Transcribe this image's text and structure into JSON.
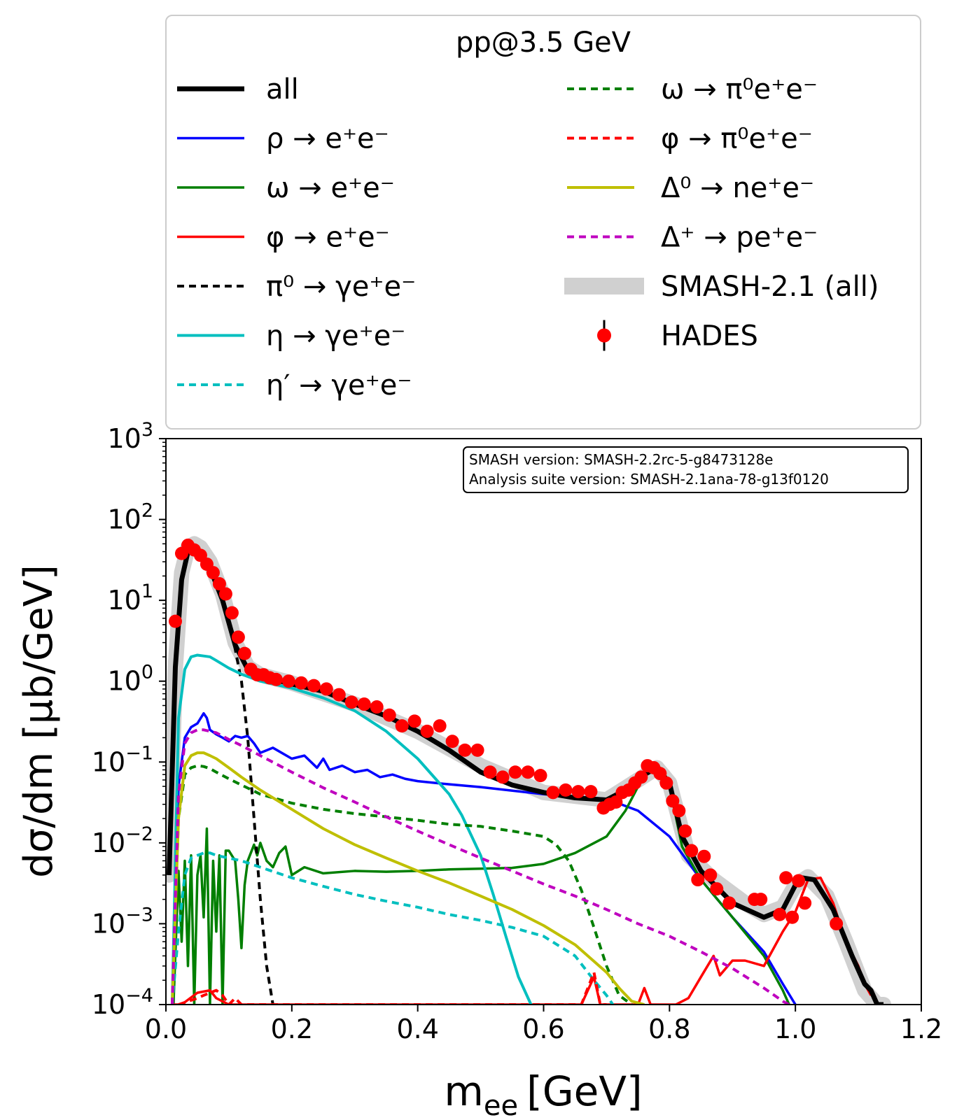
{
  "chart_data": {
    "type": "line",
    "legend_title": "pp@3.5 GeV",
    "legend_placement": "top, above axes (two columns)",
    "version_box": [
      "SMASH version: SMASH-2.2rc-5-g8473128e",
      "Analysis suite version: SMASH-2.1ana-78-g13f0120"
    ],
    "xlabel_main": "m",
    "xlabel_sub": "ee",
    "xlabel_unit": "[GeV]",
    "ylabel": "dσ/dm [μb/GeV]",
    "xlim": [
      0.0,
      1.2
    ],
    "ylim": [
      0.0001,
      1000
    ],
    "yscale": "log",
    "grid": false,
    "x_ticks": [
      "0.0",
      "0.2",
      "0.4",
      "0.6",
      "0.8",
      "1.0",
      "1.2"
    ],
    "y_ticks": [
      {
        "base": "10",
        "exp": "3",
        "value": 1000
      },
      {
        "base": "10",
        "exp": "2",
        "value": 100
      },
      {
        "base": "10",
        "exp": "1",
        "value": 10
      },
      {
        "base": "10",
        "exp": "0",
        "value": 1
      },
      {
        "base": "10",
        "exp": "−1",
        "value": 0.1
      },
      {
        "base": "10",
        "exp": "−2",
        "value": 0.01
      },
      {
        "base": "10",
        "exp": "−3",
        "value": 0.001
      },
      {
        "base": "10",
        "exp": "−4",
        "value": 0.0001
      }
    ],
    "band": {
      "name": "SMASH-2.1 (all)",
      "color": "#d0d0d0",
      "x": [
        0.005,
        0.015,
        0.025,
        0.035,
        0.045,
        0.055,
        0.07,
        0.09,
        0.11,
        0.13,
        0.15,
        0.2,
        0.3,
        0.4,
        0.5,
        0.6,
        0.7,
        0.75,
        0.78,
        0.8,
        0.83,
        0.87,
        0.92,
        0.95,
        0.98,
        1.0,
        1.02,
        1.05,
        1.08,
        1.11,
        1.13,
        1.14
      ],
      "y": [
        0.004,
        1.5,
        22,
        45,
        50,
        45,
        30,
        12,
        3,
        1.5,
        1.2,
        0.95,
        0.52,
        0.24,
        0.09,
        0.042,
        0.034,
        0.06,
        0.085,
        0.055,
        0.007,
        0.0035,
        0.0018,
        0.0013,
        0.0016,
        0.003,
        0.0038,
        0.0022,
        0.0006,
        0.00015,
        0.0001,
        0.0001
      ]
    },
    "series": [
      {
        "name": "all",
        "color": "#000000",
        "dash": "solid",
        "width": 7,
        "x": [
          0.005,
          0.015,
          0.025,
          0.035,
          0.045,
          0.055,
          0.07,
          0.09,
          0.11,
          0.13,
          0.15,
          0.2,
          0.25,
          0.3,
          0.35,
          0.4,
          0.45,
          0.5,
          0.55,
          0.6,
          0.65,
          0.7,
          0.73,
          0.76,
          0.78,
          0.8,
          0.82,
          0.85,
          0.9,
          0.95,
          0.98,
          1.0,
          1.01,
          1.03,
          1.06,
          1.09,
          1.11,
          1.12,
          1.13,
          1.14
        ],
        "y": [
          0.004,
          1.5,
          18,
          40,
          45,
          40,
          25,
          10,
          2.8,
          1.4,
          1.15,
          0.92,
          0.75,
          0.52,
          0.37,
          0.24,
          0.14,
          0.075,
          0.052,
          0.042,
          0.036,
          0.034,
          0.045,
          0.07,
          0.085,
          0.055,
          0.012,
          0.0045,
          0.0018,
          0.0012,
          0.0015,
          0.003,
          0.0037,
          0.0035,
          0.0015,
          0.0004,
          0.00018,
          0.00015,
          0.0001,
          0.0001
        ]
      },
      {
        "name": "ρ → e⁺e⁻",
        "color": "#0000ff",
        "dash": "solid",
        "width": 3.5,
        "x": [
          0.012,
          0.02,
          0.03,
          0.04,
          0.05,
          0.06,
          0.065,
          0.07,
          0.08,
          0.09,
          0.1,
          0.11,
          0.12,
          0.13,
          0.14,
          0.15,
          0.17,
          0.2,
          0.22,
          0.24,
          0.25,
          0.26,
          0.28,
          0.3,
          0.32,
          0.34,
          0.36,
          0.38,
          0.4,
          0.45,
          0.5,
          0.6,
          0.7,
          0.75,
          0.8,
          0.85,
          0.9,
          0.95,
          0.98,
          1.0
        ],
        "y": [
          0.0001,
          0.05,
          0.2,
          0.27,
          0.3,
          0.4,
          0.35,
          0.25,
          0.22,
          0.2,
          0.18,
          0.21,
          0.2,
          0.21,
          0.17,
          0.13,
          0.15,
          0.11,
          0.12,
          0.085,
          0.11,
          0.08,
          0.09,
          0.075,
          0.08,
          0.065,
          0.07,
          0.062,
          0.058,
          0.053,
          0.049,
          0.04,
          0.035,
          0.025,
          0.012,
          0.0035,
          0.0012,
          0.00045,
          0.00018,
          0.0001
        ]
      },
      {
        "name": "ω → e⁺e⁻",
        "color": "#007f00",
        "dash": "solid",
        "width": 3.5,
        "x": [
          0.012,
          0.02,
          0.025,
          0.03,
          0.035,
          0.04,
          0.045,
          0.05,
          0.055,
          0.06,
          0.065,
          0.07,
          0.075,
          0.08,
          0.085,
          0.09,
          0.095,
          0.1,
          0.11,
          0.115,
          0.12,
          0.125,
          0.13,
          0.14,
          0.145,
          0.15,
          0.16,
          0.17,
          0.18,
          0.19,
          0.2,
          0.22,
          0.25,
          0.3,
          0.35,
          0.4,
          0.45,
          0.5,
          0.55,
          0.6,
          0.65,
          0.7,
          0.73,
          0.76,
          0.78,
          0.79,
          0.8,
          0.82,
          0.85,
          0.9,
          0.95,
          0.98,
          0.99
        ],
        "y": [
          0.0001,
          0.0045,
          0.0006,
          0.006,
          0.0003,
          0.007,
          0.0001,
          0.004,
          0.007,
          0.0012,
          0.015,
          0.0001,
          0.006,
          0.0008,
          0.007,
          0.0001,
          0.008,
          0.008,
          0.006,
          0.002,
          0.0005,
          0.003,
          0.006,
          0.0095,
          0.007,
          0.01,
          0.006,
          0.005,
          0.0075,
          0.009,
          0.004,
          0.005,
          0.0042,
          0.0045,
          0.0044,
          0.0045,
          0.0047,
          0.0048,
          0.0049,
          0.0055,
          0.0075,
          0.012,
          0.025,
          0.07,
          0.09,
          0.08,
          0.05,
          0.009,
          0.0035,
          0.0012,
          0.0004,
          0.00015,
          0.0001
        ]
      },
      {
        "name": "φ → e⁺e⁻",
        "color": "#ff0000",
        "dash": "solid",
        "width": 3.5,
        "x": [
          0.012,
          0.025,
          0.05,
          0.07,
          0.08,
          0.1,
          0.12,
          0.66,
          0.68,
          0.69,
          0.7,
          0.75,
          0.76,
          0.77,
          0.79,
          0.81,
          0.83,
          0.85,
          0.87,
          0.88,
          0.9,
          0.92,
          0.95,
          0.98,
          1.0,
          1.02,
          1.04,
          1.06,
          1.08,
          1.1,
          1.11,
          1.12
        ],
        "y": [
          0.0001,
          0.0001,
          0.00014,
          0.00015,
          0.00012,
          0.0001,
          0.0001,
          0.0001,
          0.00022,
          0.0001,
          0.0001,
          0.0001,
          0.00016,
          0.0001,
          0.0001,
          0.0001,
          0.00012,
          0.00022,
          0.0004,
          0.00023,
          0.00035,
          0.00035,
          0.0003,
          0.0008,
          0.0014,
          0.0035,
          0.0037,
          0.0018,
          0.0006,
          0.0003,
          0.00018,
          0.00013
        ]
      },
      {
        "name": "π⁰ → γe⁺e⁻",
        "color": "#000000",
        "dash": "10,7",
        "width": 4,
        "x": [
          0.005,
          0.015,
          0.025,
          0.035,
          0.045,
          0.055,
          0.07,
          0.09,
          0.11,
          0.12,
          0.13,
          0.14,
          0.15,
          0.16,
          0.17
        ],
        "y": [
          0.004,
          1.5,
          18,
          40,
          45,
          40,
          25,
          10,
          2.5,
          1.0,
          0.2,
          0.02,
          0.002,
          0.0003,
          0.0001
        ]
      },
      {
        "name": "η → γe⁺e⁻",
        "color": "#00bfbf",
        "dash": "solid",
        "width": 4,
        "x": [
          0.01,
          0.02,
          0.03,
          0.04,
          0.05,
          0.06,
          0.07,
          0.08,
          0.1,
          0.12,
          0.15,
          0.2,
          0.25,
          0.3,
          0.35,
          0.4,
          0.45,
          0.47,
          0.5,
          0.52,
          0.54,
          0.56,
          0.58
        ],
        "y": [
          0.0001,
          0.35,
          1.4,
          2.0,
          2.1,
          2.05,
          2.0,
          1.8,
          1.45,
          1.22,
          1.0,
          0.82,
          0.62,
          0.43,
          0.24,
          0.11,
          0.04,
          0.022,
          0.007,
          0.0023,
          0.0007,
          0.00022,
          0.0001
        ]
      },
      {
        "name": "η′ → γe⁺e⁻",
        "color": "#00bfbf",
        "dash": "10,7",
        "width": 4,
        "x": [
          0.01,
          0.02,
          0.03,
          0.04,
          0.05,
          0.06,
          0.07,
          0.08,
          0.1,
          0.12,
          0.15,
          0.2,
          0.25,
          0.3,
          0.35,
          0.4,
          0.45,
          0.5,
          0.55,
          0.6,
          0.65,
          0.68,
          0.7,
          0.71
        ],
        "y": [
          0.0001,
          0.0008,
          0.004,
          0.0065,
          0.007,
          0.0075,
          0.0075,
          0.007,
          0.0065,
          0.006,
          0.005,
          0.0037,
          0.0029,
          0.0023,
          0.0019,
          0.0016,
          0.0013,
          0.0011,
          0.0009,
          0.0007,
          0.0004,
          0.0002,
          0.00013,
          0.0001
        ]
      },
      {
        "name": "ω → π⁰e⁺e⁻",
        "color": "#007f00",
        "dash": "10,7",
        "width": 4,
        "x": [
          0.01,
          0.02,
          0.03,
          0.04,
          0.05,
          0.06,
          0.07,
          0.08,
          0.1,
          0.12,
          0.15,
          0.2,
          0.25,
          0.3,
          0.35,
          0.4,
          0.45,
          0.5,
          0.55,
          0.6,
          0.62,
          0.64,
          0.66,
          0.68,
          0.7,
          0.72,
          0.74
        ],
        "y": [
          0.0001,
          0.02,
          0.07,
          0.085,
          0.09,
          0.088,
          0.083,
          0.075,
          0.062,
          0.052,
          0.04,
          0.031,
          0.026,
          0.023,
          0.021,
          0.019,
          0.017,
          0.016,
          0.014,
          0.012,
          0.0095,
          0.006,
          0.0026,
          0.0009,
          0.0003,
          0.00013,
          0.0001
        ]
      },
      {
        "name": "φ → π⁰e⁺e⁻",
        "color": "#ff0000",
        "dash": "10,7",
        "width": 4,
        "x": [
          0.02,
          0.05,
          0.06,
          0.07,
          0.08,
          0.09,
          0.1,
          0.11,
          0.12,
          0.66,
          0.68,
          0.69,
          0.7
        ],
        "y": [
          0.0001,
          0.00012,
          0.00013,
          0.00014,
          0.00015,
          0.00013,
          0.0001,
          0.00012,
          0.0001,
          0.0001,
          0.00025,
          0.0001,
          0.0001
        ]
      },
      {
        "name": "Δ⁰ → ne⁺e⁻",
        "color": "#bfbf00",
        "dash": "solid",
        "width": 4,
        "x": [
          0.01,
          0.02,
          0.03,
          0.04,
          0.05,
          0.06,
          0.07,
          0.08,
          0.1,
          0.12,
          0.15,
          0.2,
          0.25,
          0.3,
          0.35,
          0.4,
          0.45,
          0.5,
          0.55,
          0.6,
          0.65,
          0.7,
          0.72,
          0.74,
          0.76
        ],
        "y": [
          0.0001,
          0.02,
          0.09,
          0.12,
          0.13,
          0.13,
          0.12,
          0.11,
          0.085,
          0.065,
          0.045,
          0.026,
          0.015,
          0.0095,
          0.0065,
          0.0045,
          0.0032,
          0.0022,
          0.0015,
          0.00095,
          0.00055,
          0.00025,
          0.00016,
          0.00011,
          0.0001
        ]
      },
      {
        "name": "Δ⁺ → pe⁺e⁻",
        "color": "#bf00bf",
        "dash": "10,7",
        "width": 4,
        "x": [
          0.01,
          0.02,
          0.03,
          0.04,
          0.05,
          0.06,
          0.07,
          0.08,
          0.1,
          0.12,
          0.15,
          0.2,
          0.25,
          0.3,
          0.35,
          0.4,
          0.45,
          0.5,
          0.55,
          0.6,
          0.65,
          0.7,
          0.75,
          0.8,
          0.85,
          0.9,
          0.95,
          0.98,
          0.99
        ],
        "y": [
          0.0001,
          0.04,
          0.17,
          0.23,
          0.25,
          0.25,
          0.24,
          0.23,
          0.19,
          0.16,
          0.12,
          0.075,
          0.048,
          0.032,
          0.021,
          0.014,
          0.0095,
          0.0065,
          0.0045,
          0.0031,
          0.0022,
          0.0015,
          0.001,
          0.0007,
          0.00045,
          0.00028,
          0.00016,
          0.00011,
          0.0001
        ]
      }
    ],
    "data_points": {
      "name": "HADES",
      "color": "#ff0000",
      "x": [
        0.015,
        0.025,
        0.035,
        0.045,
        0.055,
        0.065,
        0.075,
        0.085,
        0.095,
        0.105,
        0.115,
        0.125,
        0.135,
        0.145,
        0.155,
        0.165,
        0.175,
        0.195,
        0.215,
        0.235,
        0.255,
        0.275,
        0.295,
        0.315,
        0.335,
        0.355,
        0.375,
        0.395,
        0.415,
        0.435,
        0.455,
        0.475,
        0.495,
        0.515,
        0.535,
        0.555,
        0.575,
        0.595,
        0.615,
        0.635,
        0.655,
        0.675,
        0.695,
        0.705,
        0.715,
        0.725,
        0.735,
        0.745,
        0.755,
        0.765,
        0.775,
        0.785,
        0.795,
        0.805,
        0.815,
        0.825,
        0.835,
        0.845,
        0.855,
        0.865,
        0.875,
        0.895,
        0.935,
        0.945,
        0.975,
        0.985,
        0.995,
        1.005,
        1.015,
        1.065
      ],
      "y": [
        5.5,
        38,
        48,
        42,
        36,
        28,
        22,
        16,
        12,
        7,
        3.5,
        2.2,
        1.4,
        1.2,
        1.2,
        1.1,
        1.05,
        1.0,
        0.95,
        0.88,
        0.8,
        0.68,
        0.55,
        0.52,
        0.48,
        0.38,
        0.28,
        0.32,
        0.24,
        0.28,
        0.18,
        0.14,
        0.14,
        0.075,
        0.065,
        0.075,
        0.075,
        0.068,
        0.042,
        0.045,
        0.043,
        0.043,
        0.027,
        0.03,
        0.032,
        0.042,
        0.045,
        0.055,
        0.065,
        0.09,
        0.085,
        0.072,
        0.055,
        0.033,
        0.025,
        0.014,
        0.008,
        0.0035,
        0.0068,
        0.004,
        0.0027,
        0.0018,
        0.002,
        0.002,
        0.0013,
        0.0037,
        0.0012,
        0.0034,
        0.0018,
        0.001
      ],
      "err_lo": [
        5.5,
        38,
        48,
        42,
        36,
        28,
        22,
        16,
        12,
        7,
        3.5,
        2.2,
        1.4,
        1.2,
        1.2,
        1.1,
        1.05,
        1.0,
        0.95,
        0.88,
        0.8,
        0.68,
        0.55,
        0.52,
        0.48,
        0.38,
        0.28,
        0.32,
        0.24,
        0.28,
        0.18,
        0.14,
        0.14,
        0.075,
        0.065,
        0.075,
        0.075,
        0.068,
        0.042,
        0.045,
        0.043,
        0.043,
        0.027,
        0.03,
        0.032,
        0.042,
        0.045,
        0.055,
        0.065,
        0.09,
        0.085,
        0.072,
        0.055,
        0.033,
        0.016,
        0.005,
        0.003,
        0.0002,
        0.0023,
        0.0004,
        0.0002,
        0.0002,
        0.0002,
        0.0002,
        0.0002,
        0.0002,
        0.0002,
        0.0002,
        0.0002,
        0.0002
      ],
      "err_hi": [
        5.5,
        38,
        48,
        42,
        36,
        28,
        22,
        16,
        12,
        7,
        3.5,
        2.2,
        1.4,
        1.2,
        1.2,
        1.1,
        1.05,
        1.0,
        0.95,
        0.88,
        0.8,
        0.68,
        0.55,
        0.52,
        0.48,
        0.38,
        0.28,
        0.32,
        0.24,
        0.28,
        0.18,
        0.14,
        0.14,
        0.075,
        0.065,
        0.075,
        0.075,
        0.068,
        0.042,
        0.045,
        0.043,
        0.043,
        0.027,
        0.03,
        0.032,
        0.042,
        0.045,
        0.055,
        0.065,
        0.09,
        0.085,
        0.072,
        0.055,
        0.033,
        0.025,
        0.014,
        0.008,
        0.0055,
        0.0068,
        0.004,
        0.0032,
        0.0024,
        0.004,
        0.0035,
        0.009,
        0.0075,
        0.0095,
        0.0075,
        0.0095,
        0.0028
      ]
    }
  }
}
